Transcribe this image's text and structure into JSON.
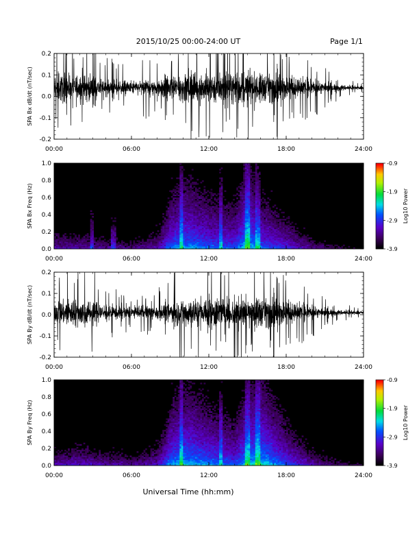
{
  "header": {
    "date_range": "2015/10/25  00:00-24:00 UT",
    "page": "Page 1/1"
  },
  "footer": {
    "xlabel": "Universal Time (hh:mm)"
  },
  "chart_data": [
    {
      "type": "line",
      "panel": "Bx dB/dt",
      "ylabel": "SPA Bx dB/dt (nT/sec)",
      "ylim": [
        -0.2,
        0.2
      ],
      "yticks": [
        "-0.2",
        "-0.1",
        "0.0",
        "0.1",
        "0.2"
      ],
      "xticks": [
        "00:00",
        "06:00",
        "12:00",
        "18:00",
        "24:00"
      ],
      "x_hours": [
        0,
        1,
        2,
        3,
        4,
        5,
        6,
        7,
        8,
        9,
        10,
        11,
        12,
        13,
        14,
        15,
        16,
        17,
        18,
        19,
        20,
        21,
        22,
        23,
        24
      ],
      "envelope_amplitude": [
        0.2,
        0.2,
        0.2,
        0.18,
        0.12,
        0.1,
        0.1,
        0.11,
        0.13,
        0.17,
        0.22,
        0.22,
        0.22,
        0.22,
        0.22,
        0.22,
        0.22,
        0.2,
        0.17,
        0.14,
        0.11,
        0.08,
        0.05,
        0.03,
        0.02
      ],
      "baseline": 0.04
    },
    {
      "type": "heatmap",
      "panel": "Bx spectrogram",
      "ylabel": "SPA Bx Freq (Hz)",
      "ylim": [
        0.0,
        1.0
      ],
      "yticks": [
        "0.0",
        "0.2",
        "0.4",
        "0.6",
        "0.8",
        "1.0"
      ],
      "xticks": [
        "00:00",
        "06:00",
        "12:00",
        "18:00",
        "24:00"
      ],
      "colorbar_label": "Log10 Power",
      "colorbar_ticks": [
        "-0.9",
        "-1.9",
        "-2.9",
        "-3.9"
      ],
      "colorbar_range": [
        -3.9,
        -0.9
      ],
      "x_hours": [
        0,
        2,
        4,
        6,
        8,
        9,
        10,
        12,
        14,
        15,
        16,
        18,
        20,
        22,
        24
      ],
      "low_freq_log_power": [
        -3.0,
        -3.0,
        -3.1,
        -3.2,
        -3.0,
        -2.4,
        -2.2,
        -2.4,
        -2.5,
        -2.0,
        -2.4,
        -2.7,
        -3.1,
        -3.4,
        -3.6
      ],
      "vertical_lines_hours": [
        2.9,
        4.6,
        9.9,
        12.9,
        15.0,
        15.8
      ]
    },
    {
      "type": "line",
      "panel": "By dB/dt",
      "ylabel": "SPA By dB/dt (nT/sec)",
      "ylim": [
        -0.2,
        0.2
      ],
      "yticks": [
        "-0.2",
        "-0.1",
        "0.0",
        "0.1",
        "0.2"
      ],
      "xticks": [
        "00:00",
        "06:00",
        "12:00",
        "18:00",
        "24:00"
      ],
      "x_hours": [
        0,
        1,
        2,
        3,
        4,
        5,
        6,
        7,
        8,
        9,
        10,
        11,
        12,
        13,
        14,
        15,
        16,
        17,
        18,
        19,
        20,
        21,
        22,
        23,
        24
      ],
      "envelope_amplitude": [
        0.17,
        0.19,
        0.2,
        0.17,
        0.12,
        0.09,
        0.08,
        0.09,
        0.11,
        0.15,
        0.22,
        0.22,
        0.22,
        0.22,
        0.22,
        0.22,
        0.22,
        0.2,
        0.17,
        0.13,
        0.09,
        0.06,
        0.04,
        0.03,
        0.02
      ],
      "baseline": 0.01
    },
    {
      "type": "heatmap",
      "panel": "By spectrogram",
      "ylabel": "SPA By Freq (Hz)",
      "ylim": [
        0.0,
        1.0
      ],
      "yticks": [
        "0.0",
        "0.2",
        "0.4",
        "0.6",
        "0.8",
        "1.0"
      ],
      "xticks": [
        "00:00",
        "06:00",
        "12:00",
        "18:00",
        "24:00"
      ],
      "colorbar_label": "Log10 Power",
      "colorbar_ticks": [
        "-0.9",
        "-1.9",
        "-2.9",
        "-3.9"
      ],
      "colorbar_range": [
        -3.9,
        -0.9
      ],
      "x_hours": [
        0,
        2,
        4,
        6,
        8,
        9,
        10,
        12,
        14,
        15,
        16,
        18,
        20,
        22,
        24
      ],
      "low_freq_log_power": [
        -3.0,
        -2.9,
        -3.0,
        -3.1,
        -2.9,
        -2.3,
        -2.1,
        -2.3,
        -2.5,
        -2.1,
        -2.0,
        -2.5,
        -3.0,
        -3.3,
        -3.5
      ],
      "vertical_lines_hours": [
        9.9,
        12.9,
        15.0,
        15.8
      ]
    }
  ]
}
